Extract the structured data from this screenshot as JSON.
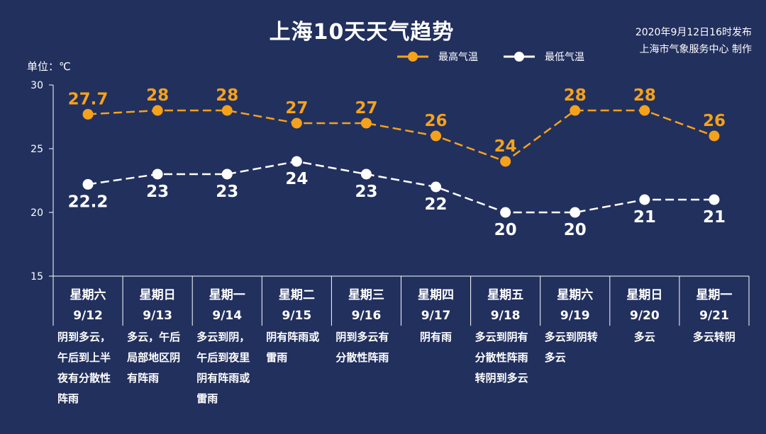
{
  "title": "上海10天天气趋势",
  "issued": {
    "time": "2020年9月12日16时发布",
    "producer": "上海市气象服务中心 制作"
  },
  "unit": "单位：℃",
  "colors": {
    "background": "#22305e",
    "high": "#f5a21b",
    "low": "#ffffff"
  },
  "chart_data": {
    "type": "line",
    "title": "上海10天天气趋势",
    "ylabel": "单位：℃",
    "ylim": [
      15,
      30
    ],
    "yticks": [
      "15",
      "20",
      "25",
      "30"
    ],
    "grid": false,
    "legend": "top-right",
    "categories": [
      "9/12",
      "9/13",
      "9/14",
      "9/15",
      "9/16",
      "9/17",
      "9/18",
      "9/19",
      "9/20",
      "9/21"
    ],
    "weekdays": [
      "星期六",
      "星期日",
      "星期一",
      "星期二",
      "星期三",
      "星期四",
      "星期五",
      "星期六",
      "星期日",
      "星期一"
    ],
    "series": [
      {
        "name": "最高气温",
        "values": [
          27.7,
          28,
          28,
          27,
          27,
          26,
          24,
          28,
          28,
          26
        ],
        "labels": [
          "27.7",
          "28",
          "28",
          "27",
          "27",
          "26",
          "24",
          "28",
          "28",
          "26"
        ]
      },
      {
        "name": "最低气温",
        "values": [
          22.2,
          23,
          23,
          24,
          23,
          22,
          20,
          20,
          21,
          21
        ],
        "labels": [
          "22.2",
          "23",
          "23",
          "24",
          "23",
          "22",
          "20",
          "20",
          "21",
          "21"
        ]
      }
    ],
    "weather": [
      [
        "阴到多云，",
        "午后到上半",
        "夜有分散性",
        "阵雨"
      ],
      [
        "多云，午后",
        "局部地区阴",
        "有阵雨"
      ],
      [
        "多云到阴，",
        "午后到夜里",
        "阴有阵雨或",
        "雷雨"
      ],
      [
        "阴有阵雨或",
        "雷雨"
      ],
      [
        "阴到多云有",
        "分散性阵雨"
      ],
      [
        "阴有雨"
      ],
      [
        "多云到阴有",
        "分散性阵雨",
        "转阴到多云"
      ],
      [
        "多云到阴转",
        "多云"
      ],
      [
        "多云"
      ],
      [
        "多云转阴"
      ]
    ]
  }
}
